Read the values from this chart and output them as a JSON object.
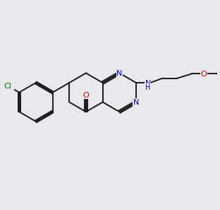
{
  "bg_color": "#e8e8ed",
  "bond_color": "#1a1a1a",
  "N_color": "#0000cc",
  "O_color": "#cc0000",
  "Cl_color": "#007700",
  "line_width": 1.4,
  "font_size": 8.0,
  "bl": 0.95
}
